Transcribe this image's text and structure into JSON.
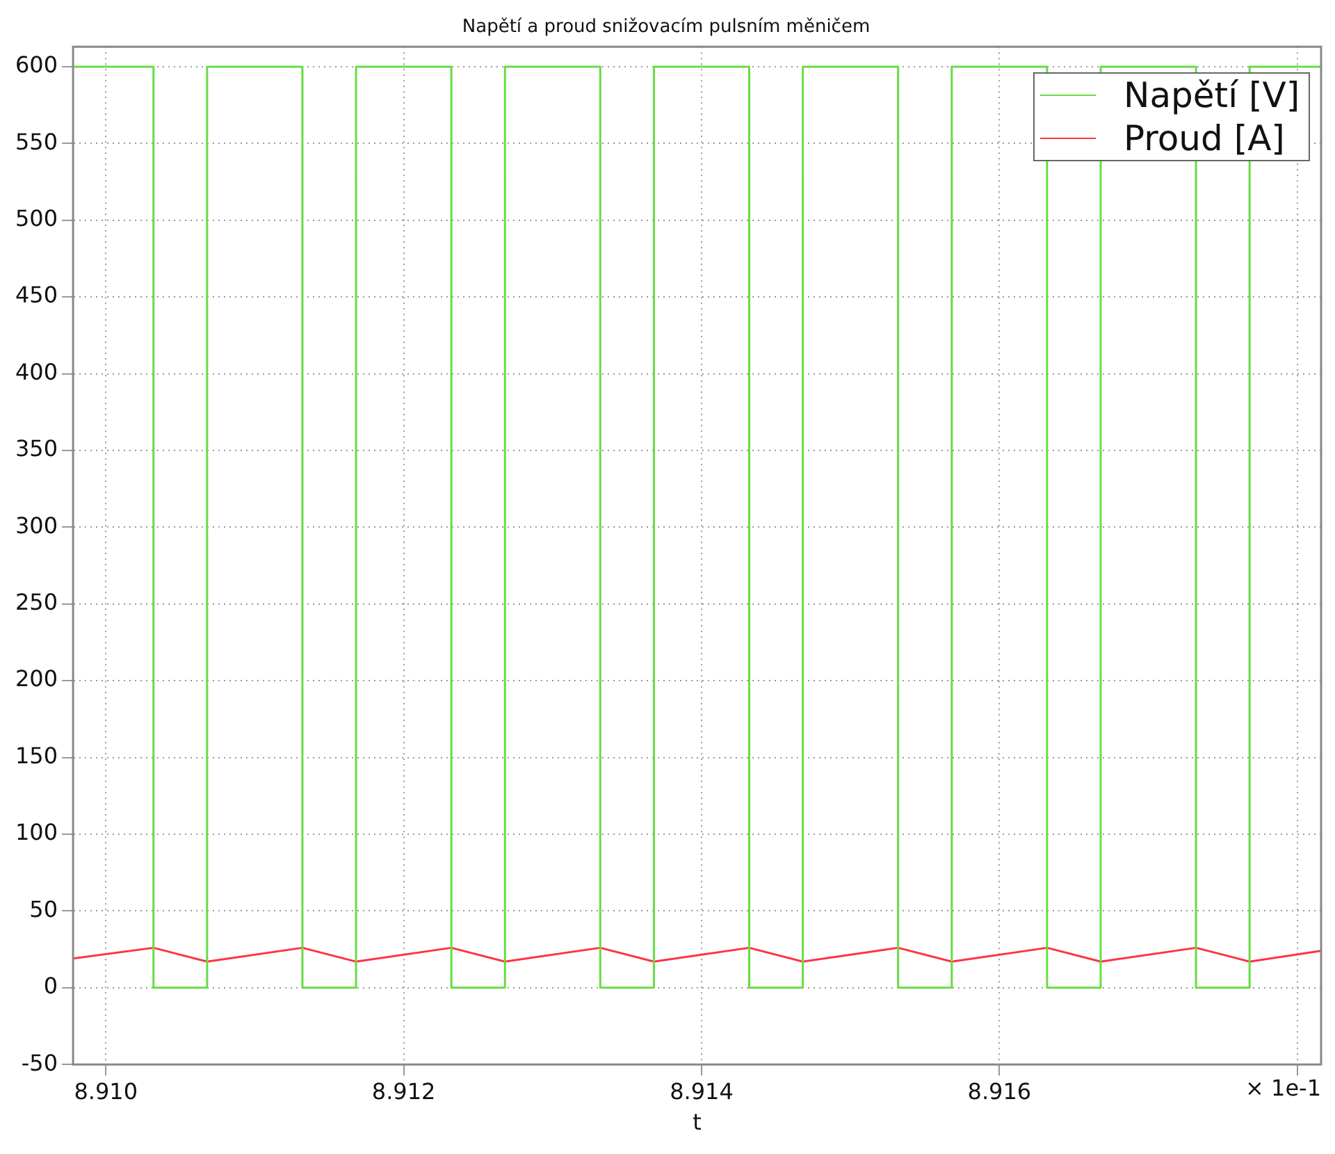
{
  "chart_data": {
    "type": "line",
    "title": "Napětí a proud snižovacím pulsním měničem",
    "xlabel": "t",
    "annotations": [
      "× 1e-1"
    ],
    "xlim": [
      8.90978,
      8.91816
    ],
    "xticks": [
      {
        "value": 8.91,
        "label": "8.910"
      },
      {
        "value": 8.912,
        "label": "8.912"
      },
      {
        "value": 8.914,
        "label": "8.914"
      },
      {
        "value": 8.916,
        "label": "8.916"
      },
      {
        "value": 8.918,
        "label": null
      }
    ],
    "ylim": [
      -50,
      613
    ],
    "yticks": [
      -50,
      0,
      50,
      100,
      150,
      200,
      250,
      300,
      350,
      400,
      450,
      500,
      550,
      600
    ],
    "grid": true,
    "legend": "top right",
    "marker": "none",
    "line_style": "solid",
    "series": [
      {
        "name": "Napětí [V]",
        "color": "#66dd44",
        "x": [
          8.90978,
          8.91032,
          8.91032,
          8.91068,
          8.91068,
          8.91132,
          8.91132,
          8.91168,
          8.91168,
          8.91232,
          8.91232,
          8.91268,
          8.91268,
          8.91332,
          8.91332,
          8.91368,
          8.91368,
          8.91432,
          8.91432,
          8.91468,
          8.91468,
          8.91532,
          8.91532,
          8.91568,
          8.91568,
          8.91632,
          8.91632,
          8.91668,
          8.91668,
          8.91732,
          8.91732,
          8.91768,
          8.91768,
          8.91816
        ],
        "values": [
          600,
          600,
          0,
          0,
          600,
          600,
          0,
          0,
          600,
          600,
          0,
          0,
          600,
          600,
          0,
          0,
          600,
          600,
          0,
          0,
          600,
          600,
          0,
          0,
          600,
          600,
          0,
          0,
          600,
          600,
          0,
          0,
          600,
          600
        ]
      },
      {
        "name": "Proud [A]",
        "color": "#ff3344",
        "x": [
          8.90978,
          8.91032,
          8.91068,
          8.91132,
          8.91168,
          8.91232,
          8.91268,
          8.91332,
          8.91368,
          8.91432,
          8.91468,
          8.91532,
          8.91568,
          8.91632,
          8.91668,
          8.91732,
          8.91768,
          8.91816
        ],
        "values": [
          19,
          26,
          17,
          26,
          17,
          26,
          17,
          26,
          17,
          26,
          17,
          26,
          17,
          26,
          17,
          26,
          17,
          24
        ]
      }
    ]
  }
}
